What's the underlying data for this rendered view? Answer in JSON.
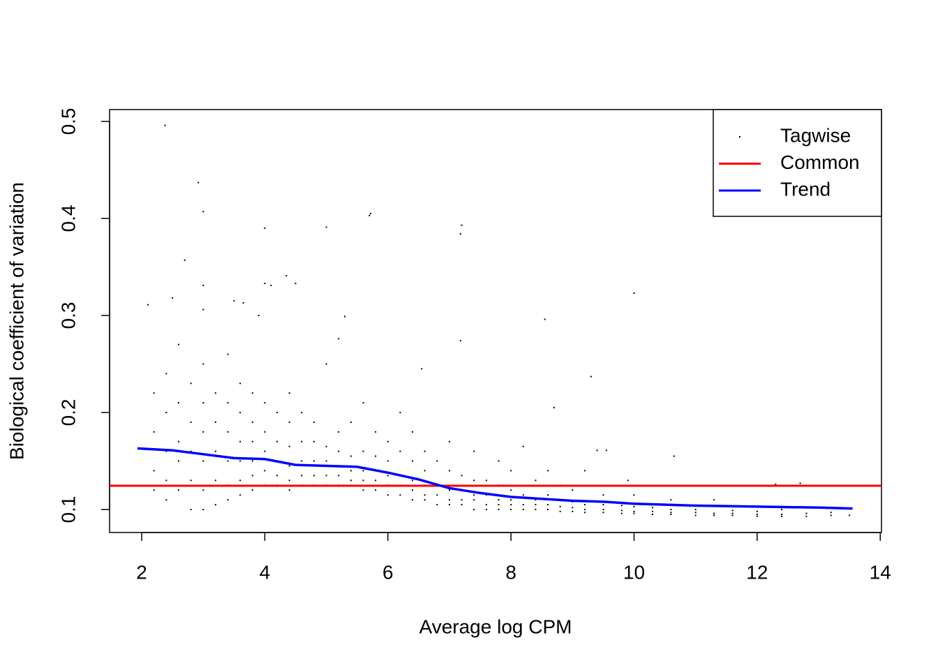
{
  "chart_data": {
    "type": "scatter",
    "xlabel": "Average log CPM",
    "ylabel": "Biological coefficient of variation",
    "xlim": [
      1.478,
      14.02
    ],
    "ylim": [
      0.0763,
      0.5122
    ],
    "xticks": [
      2,
      4,
      6,
      8,
      10,
      12,
      14
    ],
    "yticks": [
      0.1,
      0.2,
      0.3,
      0.4,
      0.5
    ],
    "legend": "topright",
    "series": [
      {
        "name": "Tagwise",
        "color": "#000000",
        "x": [
          2.38,
          2.92,
          3.0,
          5.7,
          5.72,
          4.0,
          5.0,
          7.2,
          7.18,
          2.7,
          4.35,
          4.0,
          4.1,
          4.5,
          3.0,
          10.0,
          2.1,
          2.5,
          3.5,
          3.65,
          3.0,
          5.3,
          8.55,
          3.9,
          7.18,
          5.2,
          9.3,
          6.55,
          8.7,
          9.55,
          10.65,
          9.4,
          9.9,
          12.3,
          12.7,
          2.2,
          2.2,
          2.2,
          2.2,
          2.4,
          2.4,
          2.4,
          2.4,
          2.4,
          2.6,
          2.6,
          2.6,
          2.6,
          2.6,
          2.8,
          2.8,
          2.8,
          2.8,
          2.8,
          3.0,
          3.0,
          3.0,
          3.0,
          3.0,
          3.0,
          3.2,
          3.2,
          3.2,
          3.2,
          3.2,
          3.4,
          3.4,
          3.4,
          3.4,
          3.4,
          3.4,
          3.6,
          3.6,
          3.6,
          3.6,
          3.6,
          3.6,
          3.8,
          3.8,
          3.8,
          3.8,
          3.8,
          3.8,
          4.0,
          4.0,
          4.0,
          4.0,
          4.0,
          4.2,
          4.2,
          4.2,
          4.2,
          4.2,
          4.4,
          4.4,
          4.4,
          4.4,
          4.4,
          4.4,
          4.6,
          4.6,
          4.6,
          4.6,
          4.6,
          4.8,
          4.8,
          4.8,
          4.8,
          4.8,
          5.0,
          5.0,
          5.0,
          5.0,
          5.0,
          5.2,
          5.2,
          5.2,
          5.2,
          5.2,
          5.4,
          5.4,
          5.4,
          5.4,
          5.4,
          5.6,
          5.6,
          5.6,
          5.6,
          5.6,
          5.8,
          5.8,
          5.8,
          5.8,
          5.8,
          6.0,
          6.0,
          6.0,
          6.0,
          6.0,
          6.2,
          6.2,
          6.2,
          6.2,
          6.2,
          6.4,
          6.4,
          6.4,
          6.4,
          6.4,
          6.6,
          6.6,
          6.6,
          6.6,
          6.6,
          6.8,
          6.8,
          6.8,
          6.8,
          7.0,
          7.0,
          7.0,
          7.0,
          7.0,
          7.2,
          7.2,
          7.2,
          7.2,
          7.4,
          7.4,
          7.4,
          7.4,
          7.4,
          7.6,
          7.6,
          7.6,
          7.6,
          7.8,
          7.8,
          7.8,
          7.8,
          7.8,
          8.0,
          8.0,
          8.0,
          8.0,
          8.0,
          8.2,
          8.2,
          8.2,
          8.2,
          8.4,
          8.4,
          8.4,
          8.4,
          8.6,
          8.6,
          8.6,
          8.6,
          8.8,
          8.8,
          8.8,
          8.8,
          9.0,
          9.0,
          9.0,
          9.0,
          9.2,
          9.2,
          9.2,
          9.2,
          9.5,
          9.5,
          9.5,
          9.5,
          9.8,
          9.8,
          9.8,
          10.0,
          10.0,
          10.0,
          10.0,
          10.3,
          10.3,
          10.3,
          10.6,
          10.6,
          10.6,
          10.6,
          11.0,
          11.0,
          11.0,
          11.3,
          11.3,
          11.3,
          11.6,
          11.6,
          11.6,
          12.0,
          12.0,
          12.0,
          12.4,
          12.4,
          12.4,
          12.8,
          12.8,
          13.2,
          13.2,
          13.5
        ],
        "values": [
          0.496,
          0.437,
          0.407,
          0.403,
          0.405,
          0.39,
          0.391,
          0.393,
          0.384,
          0.357,
          0.341,
          0.333,
          0.331,
          0.333,
          0.331,
          0.323,
          0.311,
          0.318,
          0.315,
          0.313,
          0.306,
          0.299,
          0.296,
          0.3,
          0.274,
          0.276,
          0.237,
          0.245,
          0.205,
          0.161,
          0.155,
          0.161,
          0.13,
          0.126,
          0.127,
          0.12,
          0.14,
          0.18,
          0.22,
          0.11,
          0.13,
          0.16,
          0.2,
          0.24,
          0.12,
          0.15,
          0.17,
          0.21,
          0.27,
          0.1,
          0.13,
          0.16,
          0.19,
          0.23,
          0.1,
          0.12,
          0.15,
          0.18,
          0.21,
          0.25,
          0.105,
          0.13,
          0.16,
          0.19,
          0.22,
          0.11,
          0.125,
          0.15,
          0.18,
          0.21,
          0.26,
          0.115,
          0.13,
          0.15,
          0.17,
          0.2,
          0.23,
          0.12,
          0.135,
          0.15,
          0.17,
          0.19,
          0.22,
          0.125,
          0.14,
          0.16,
          0.18,
          0.21,
          0.125,
          0.135,
          0.15,
          0.17,
          0.2,
          0.12,
          0.13,
          0.145,
          0.165,
          0.19,
          0.22,
          0.125,
          0.135,
          0.15,
          0.17,
          0.2,
          0.125,
          0.135,
          0.15,
          0.17,
          0.19,
          0.125,
          0.135,
          0.15,
          0.165,
          0.25,
          0.125,
          0.135,
          0.145,
          0.16,
          0.18,
          0.125,
          0.13,
          0.14,
          0.155,
          0.19,
          0.12,
          0.13,
          0.14,
          0.16,
          0.21,
          0.12,
          0.13,
          0.14,
          0.155,
          0.18,
          0.115,
          0.125,
          0.135,
          0.15,
          0.17,
          0.115,
          0.125,
          0.135,
          0.16,
          0.2,
          0.11,
          0.12,
          0.13,
          0.15,
          0.18,
          0.11,
          0.115,
          0.125,
          0.14,
          0.16,
          0.105,
          0.115,
          0.125,
          0.15,
          0.105,
          0.11,
          0.12,
          0.14,
          0.17,
          0.105,
          0.11,
          0.12,
          0.135,
          0.1,
          0.11,
          0.115,
          0.13,
          0.16,
          0.1,
          0.105,
          0.115,
          0.13,
          0.1,
          0.105,
          0.11,
          0.125,
          0.15,
          0.1,
          0.105,
          0.11,
          0.12,
          0.14,
          0.1,
          0.105,
          0.115,
          0.165,
          0.1,
          0.105,
          0.11,
          0.13,
          0.1,
          0.105,
          0.115,
          0.14,
          0.098,
          0.103,
          0.11,
          0.125,
          0.098,
          0.102,
          0.108,
          0.12,
          0.097,
          0.1,
          0.105,
          0.14,
          0.097,
          0.1,
          0.105,
          0.115,
          0.096,
          0.099,
          0.104,
          0.096,
          0.098,
          0.103,
          0.115,
          0.095,
          0.098,
          0.102,
          0.095,
          0.097,
          0.1,
          0.11,
          0.094,
          0.097,
          0.1,
          0.094,
          0.096,
          0.11,
          0.094,
          0.096,
          0.099,
          0.093,
          0.095,
          0.098,
          0.093,
          0.095,
          0.1,
          0.093,
          0.096,
          0.094,
          0.097,
          0.094
        ]
      },
      {
        "name": "Common",
        "color": "#ff0000",
        "values": [
          0.1245
        ]
      },
      {
        "name": "Trend",
        "color": "#0000ff",
        "x": [
          1.93,
          2.5,
          3.0,
          3.5,
          4.0,
          4.5,
          5.0,
          5.5,
          6.0,
          6.5,
          7.0,
          7.5,
          8.0,
          8.5,
          9.0,
          9.5,
          10.0,
          10.5,
          11.0,
          12.0,
          13.0,
          13.55
        ],
        "values": [
          0.163,
          0.161,
          0.157,
          0.153,
          0.152,
          0.146,
          0.145,
          0.144,
          0.138,
          0.131,
          0.122,
          0.117,
          0.113,
          0.111,
          0.109,
          0.108,
          0.106,
          0.105,
          0.104,
          0.103,
          0.102,
          0.101
        ]
      }
    ]
  }
}
